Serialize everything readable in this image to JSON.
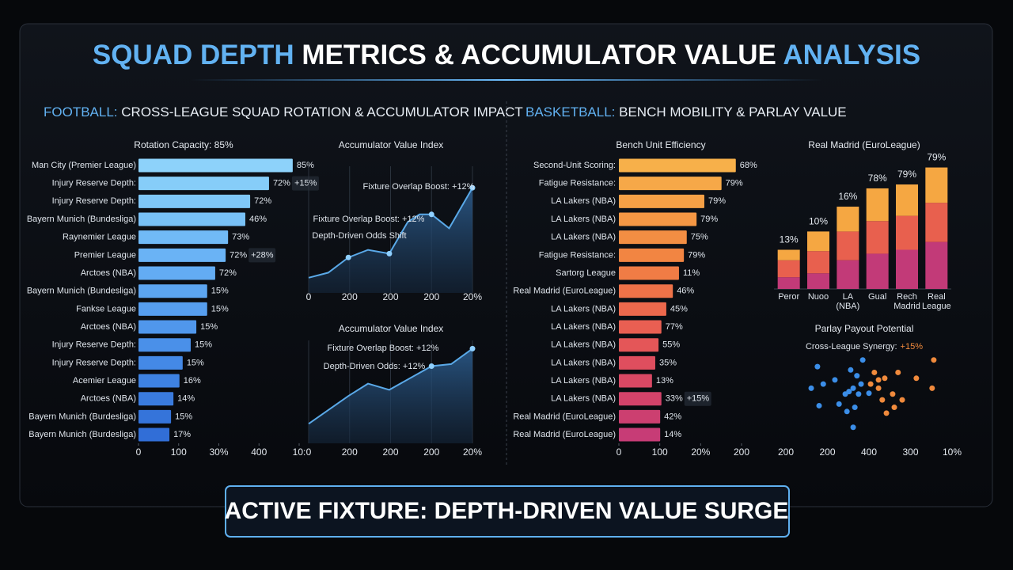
{
  "header": {
    "title": [
      "SQUAD DEPTH",
      "METRICS & ACCUMULATOR VALUE",
      "ANALYSIS"
    ]
  },
  "sections": [
    {
      "label": "FOOTBALL:",
      "title": "CROSS-LEAGUE SQUAD ROTATION & ACCUMULATOR IMPACT"
    },
    {
      "label": "BASKETBALL:",
      "title": "BENCH MOBILITY & PARLAY VALUE"
    }
  ],
  "chart_data": [
    {
      "type": "hbar",
      "title": "Rotation Capacity: 85%",
      "categories": [
        "Man City (Premier League)",
        "Injury Reserve Depth:",
        "Injury Reserve Depth:",
        "Bayern Munich (Bundesliga)",
        "Raynemier League",
        "Premier League",
        "Arctoes (NBA)",
        "Bayern Munich (Bundesliga)",
        "Fankse League",
        "Arctoes (NBA)",
        "Injury Reserve Depth:",
        "Injury Reserve Depth:",
        "Acemier League",
        "Arctoes (NBA)",
        "Bayern Munich (Burdesliga)",
        "Bayern Munich (Burdesliga)"
      ],
      "values": [
        384,
        325,
        278,
        266,
        223,
        217,
        191,
        171,
        171,
        144,
        130,
        110,
        102,
        87,
        81,
        77
      ],
      "bar_labels": [
        "85%",
        "72%",
        "72%",
        "46%",
        "73%",
        "72%",
        "72%",
        "15%",
        "15%",
        "15%",
        "15%",
        "15%",
        "16%",
        "14%",
        "15%",
        "17%"
      ],
      "notes": [
        null,
        "+15%",
        null,
        null,
        null,
        "+28%",
        null,
        null,
        null,
        null,
        null,
        null,
        null,
        null,
        null,
        null
      ],
      "colors": [
        "#8dd2fa",
        "#86cdf9",
        "#7fc7f8",
        "#78c1f7",
        "#71baf6",
        "#6ab3f5",
        "#63acf3",
        "#5ca5f1",
        "#569eef",
        "#5097ec",
        "#4a90e9",
        "#4489e6",
        "#3e82e2",
        "#3a7bde",
        "#3574da",
        "#316ed7"
      ],
      "xlim": [
        0,
        400
      ],
      "xticks": [
        0,
        100,
        {
          "value": 200,
          "label": "30%"
        },
        {
          "value": 300,
          "label": "400"
        },
        {
          "value": 400,
          "label": "10:"
        }
      ]
    },
    {
      "type": "area",
      "title": "Accumulator Value Index",
      "x": [
        0,
        48,
        97,
        145,
        197,
        242,
        271,
        300,
        343,
        400
      ],
      "values": [
        12,
        16,
        28,
        34,
        31,
        56,
        62,
        62,
        51,
        83
      ],
      "markers": [
        false,
        false,
        true,
        false,
        true,
        false,
        false,
        true,
        false,
        true
      ],
      "color": "#5aa9e8",
      "annotations": [
        "Fixture Overlap Boost: +12%",
        "Fixture Overlap Boost: +12%",
        "Depth-Driven Odds Shift"
      ],
      "xlim": [
        0,
        400
      ],
      "ylim": [
        0,
        100
      ],
      "grid": true,
      "xticks": [
        0,
        {
          "value": 100,
          "label": "200"
        },
        200,
        {
          "value": 300,
          "label": "200"
        },
        {
          "value": 400,
          "label": "20%"
        }
      ]
    },
    {
      "type": "area",
      "title": "Accumulator Value Index",
      "x": [
        0,
        97,
        145,
        197,
        300,
        348,
        400
      ],
      "values": [
        19,
        46,
        58,
        52,
        75,
        77,
        92
      ],
      "markers": [
        false,
        false,
        false,
        false,
        true,
        false,
        true
      ],
      "color": "#5aa9e8",
      "annotations": [
        "Fixture Overlap Boost: +12%",
        "Depth-Driven Odds: +12%"
      ],
      "xlim": [
        0,
        400
      ],
      "ylim": [
        0,
        100
      ],
      "grid": true,
      "xticks": [
        0,
        {
          "value": 100,
          "label": "200"
        },
        200,
        {
          "value": 300,
          "label": "200"
        },
        {
          "value": 400,
          "label": "20%"
        }
      ]
    },
    {
      "type": "hbar",
      "title": "Bench Unit Efficiency",
      "categories": [
        "Second-Unit Scoring:",
        "Fatigue Resistance:",
        "LA Lakers (NBA)",
        "LA Lakers (NBA)",
        "LA Lakers (NBA)",
        "Fatigue Resistance:",
        "Sartorg League",
        "Real Madrid (EuroLeague)",
        "LA Lakers (NBA)",
        "LA Lakers (NBA)",
        "LA Lakers (NBA)",
        "LA Lakers (NBA)",
        "LA Lakers (NBA)",
        "LA Lakers (NBA)",
        "Real Madrid (EuroLeague)",
        "Real Madrid (EuroLeague)"
      ],
      "values": [
        286,
        251,
        209,
        190,
        166,
        159,
        147,
        132,
        116,
        104,
        97,
        89,
        81,
        104,
        101,
        101
      ],
      "bar_labels": [
        "68%",
        "79%",
        "79%",
        "79%",
        "75%",
        "79%",
        "11%",
        "46%",
        "45%",
        "77%",
        "55%",
        "35%",
        "13%",
        "33%",
        "42%",
        "14%"
      ],
      "notes": [
        null,
        null,
        null,
        null,
        null,
        null,
        null,
        null,
        null,
        null,
        null,
        null,
        null,
        "+15%",
        null,
        null
      ],
      "colors": [
        "#f7b04a",
        "#f6a848",
        "#f5a046",
        "#f49744",
        "#f38e43",
        "#f28542",
        "#f07c45",
        "#ee7248",
        "#ec684c",
        "#e95f52",
        "#e45658",
        "#df4e5e",
        "#d94864",
        "#d3436a",
        "#cc3f70",
        "#c73c76"
      ],
      "xlim": [
        0,
        300
      ],
      "xticks": [
        0,
        100,
        {
          "value": 200,
          "label": "20%"
        },
        {
          "value": 300,
          "label": "200"
        }
      ]
    },
    {
      "type": "stacked_bar",
      "title": "Real Madrid (EuroLeague)",
      "categories": [
        "Peror",
        "Nuoo",
        "LA\n(NBA)",
        "Gual",
        "Rech\nMadrid",
        "Real\nLeague"
      ],
      "series": [
        {
          "color": "#c23a78",
          "values": [
            9,
            12,
            22,
            27,
            30,
            36
          ]
        },
        {
          "color": "#e8604e",
          "values": [
            13,
            17,
            22,
            25,
            26,
            30
          ]
        },
        {
          "color": "#f5a742",
          "values": [
            8,
            15,
            19,
            25,
            24,
            27
          ]
        }
      ],
      "bar_labels": [
        "13%",
        "10%",
        "16%",
        "78%",
        "79%",
        "79%"
      ],
      "ylim": [
        0,
        100
      ]
    },
    {
      "type": "scatter",
      "title": "Parlay Payout Potential",
      "subtitle": "Cross-League Synergy:",
      "subtitle_value": "+15%",
      "series": [
        {
          "color": "#3b8ee8",
          "x": [
            76,
            61,
            90,
            118,
            128,
            143,
            152,
            162,
            175,
            156,
            171,
            185,
            181,
            147,
            162,
            80,
            166,
            200
          ],
          "values": [
            78,
            52,
            57,
            62,
            33,
            45,
            48,
            52,
            45,
            74,
            67,
            86,
            57,
            24,
            5,
            31,
            29,
            46
          ]
        },
        {
          "color": "#f08a3c",
          "x": [
            213,
            223,
            204,
            238,
            257,
            232,
            270,
            280,
            314,
            356,
            352,
            242,
            261,
            223
          ],
          "values": [
            71,
            62,
            57,
            64,
            45,
            38,
            71,
            38,
            64,
            86,
            52,
            22,
            29,
            52
          ]
        }
      ],
      "xlim": [
        0,
        400
      ],
      "ylim": [
        0,
        100
      ],
      "xticks": [
        {
          "value": 0,
          "label": "200"
        },
        {
          "value": 100,
          "label": "200"
        },
        {
          "value": 200,
          "label": "400"
        },
        {
          "value": 300,
          "label": "300"
        },
        {
          "value": 400,
          "label": "10%"
        }
      ]
    }
  ],
  "footer": {
    "text": "ACTIVE FIXTURE: DEPTH-DRIVEN VALUE SURGE"
  }
}
